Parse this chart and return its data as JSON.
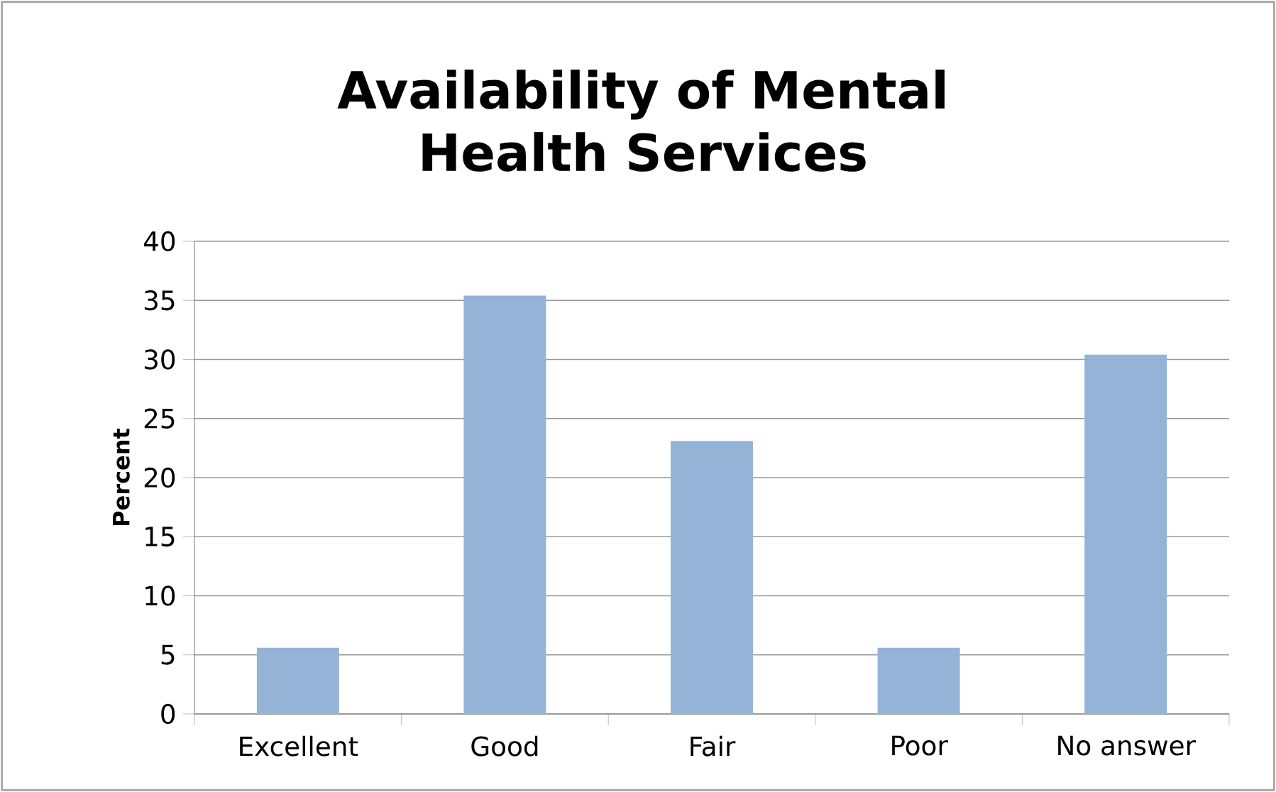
{
  "chart_data": {
    "type": "bar",
    "title": "Availability of Mental Health Services",
    "ylabel": "Percent",
    "categories": [
      "Excellent",
      "Good",
      "Fair",
      "Poor",
      "No answer"
    ],
    "values": [
      5.6,
      35.4,
      23.1,
      5.6,
      30.4
    ],
    "color": "#95b3d7",
    "ylim": [
      0,
      40
    ],
    "yticks": [
      0,
      5,
      10,
      15,
      20,
      25,
      30,
      35,
      40
    ],
    "grid": "y"
  }
}
